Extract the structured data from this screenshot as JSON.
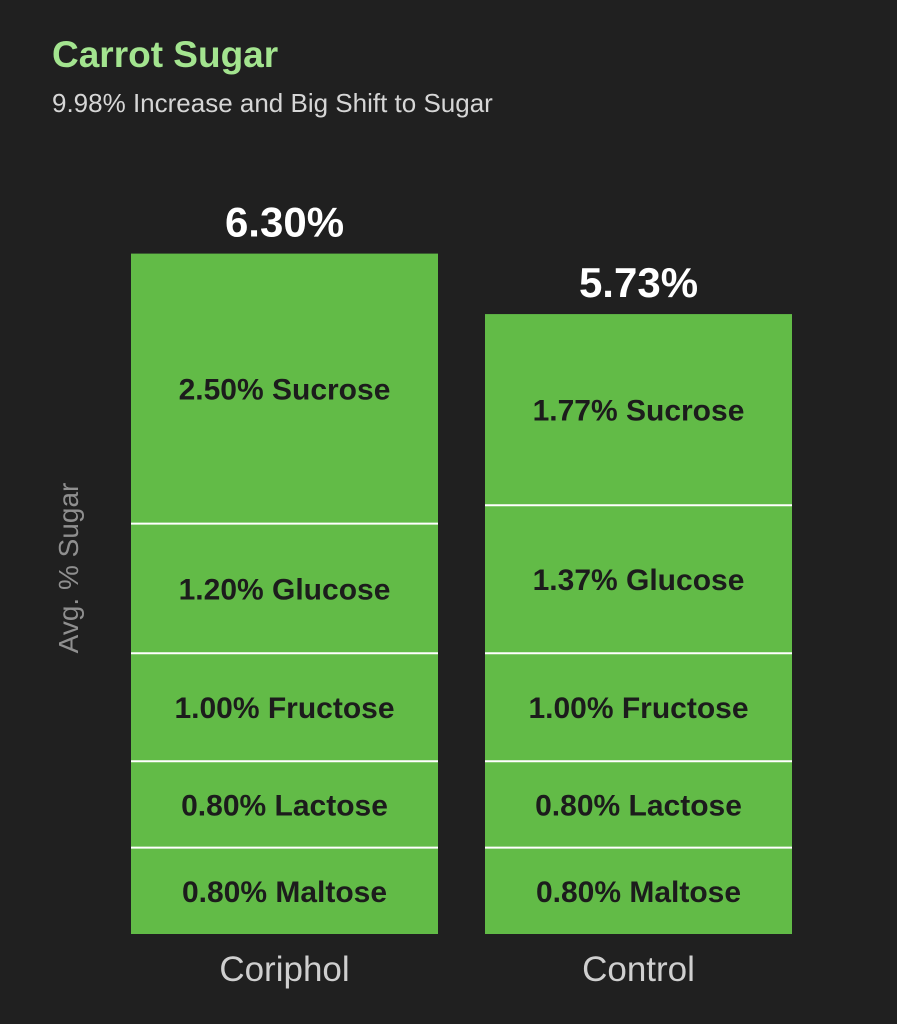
{
  "chart_data": {
    "type": "bar",
    "stacked": true,
    "title": "Carrot Sugar",
    "subtitle": "9.98% Increase and Big Shift to Sugar",
    "ylabel": "Avg. % Sugar",
    "xlabel": "",
    "categories": [
      "Coriphol",
      "Control"
    ],
    "totals": [
      "6.30%",
      "5.73%"
    ],
    "series": [
      {
        "name": "Maltose",
        "values": [
          0.8,
          0.8
        ],
        "labels": [
          "0.80% Maltose",
          "0.80% Maltose"
        ]
      },
      {
        "name": "Lactose",
        "values": [
          0.8,
          0.8
        ],
        "labels": [
          "0.80% Lactose",
          "0.80% Lactose"
        ]
      },
      {
        "name": "Fructose",
        "values": [
          1.0,
          1.0
        ],
        "labels": [
          "1.00% Fructose",
          "1.00% Fructose"
        ]
      },
      {
        "name": "Glucose",
        "values": [
          1.2,
          1.37
        ],
        "labels": [
          "1.20% Glucose",
          "1.37% Glucose"
        ]
      },
      {
        "name": "Sucrose",
        "values": [
          2.5,
          1.77
        ],
        "labels": [
          "2.50% Sucrose",
          "1.77% Sucrose"
        ]
      }
    ],
    "colors": {
      "bar": "#62bb47",
      "divider": "#ffffff",
      "background": "#202020",
      "title": "#a3e48f"
    },
    "grid": false,
    "legend": "none"
  }
}
